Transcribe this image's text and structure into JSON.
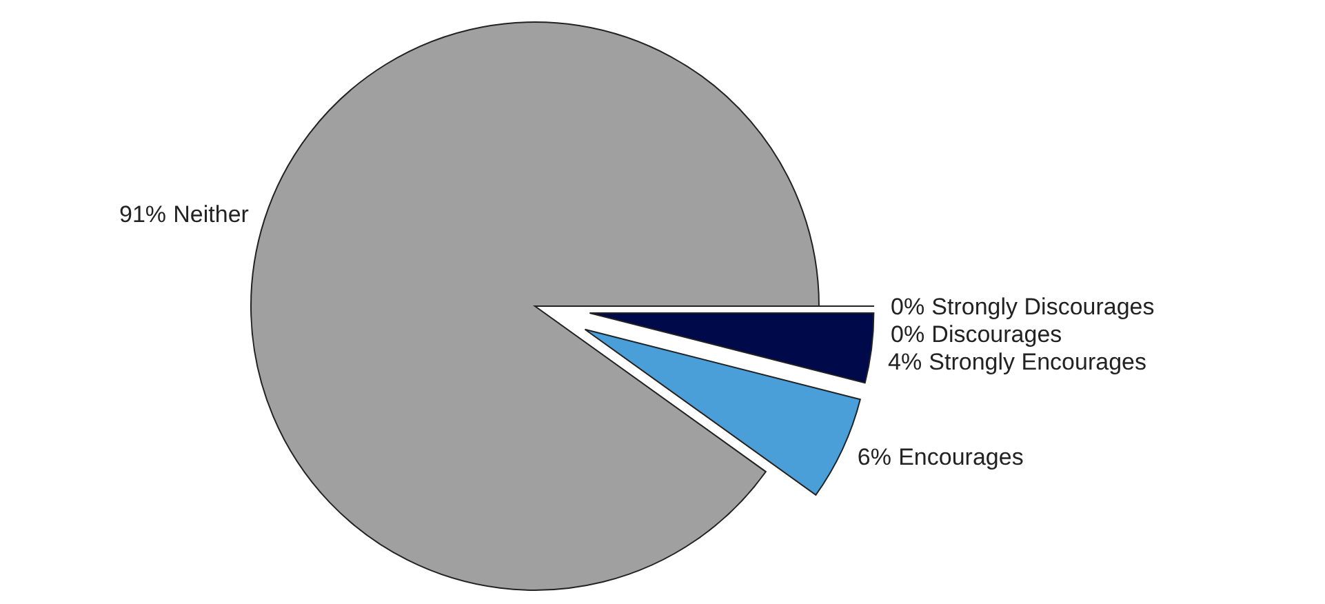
{
  "chart_data": {
    "type": "pie",
    "categories": [
      "Strongly Discourages",
      "Discourages",
      "Strongly Encourages",
      "Encourages",
      "Neither"
    ],
    "values": [
      0,
      0,
      4,
      6,
      91
    ],
    "colors": [
      "#1a1a5e",
      "#2a2a7a",
      "#000a4a",
      "#4a9fd8",
      "#a0a0a0"
    ],
    "value_labels": [
      "0%",
      "0%",
      "4%",
      "6%",
      "91%"
    ]
  }
}
